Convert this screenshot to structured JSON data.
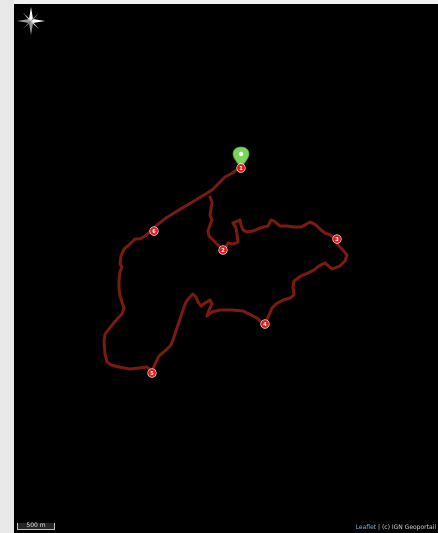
{
  "map": {
    "background": "#000000",
    "track_color": "#7a1a10",
    "marker_color": "#e51b1b",
    "start_pin_color": "#7ad65a",
    "km_markers": [
      "1",
      "2",
      "3",
      "4",
      "5",
      "6"
    ]
  },
  "scale": {
    "label": "500 m"
  },
  "attribution": {
    "link": "Leaflet",
    "separator": " | ",
    "credit": "(c) IGN Geoportail"
  },
  "icons": {
    "compass": "compass-rose-icon",
    "start": "start-pin-icon"
  }
}
